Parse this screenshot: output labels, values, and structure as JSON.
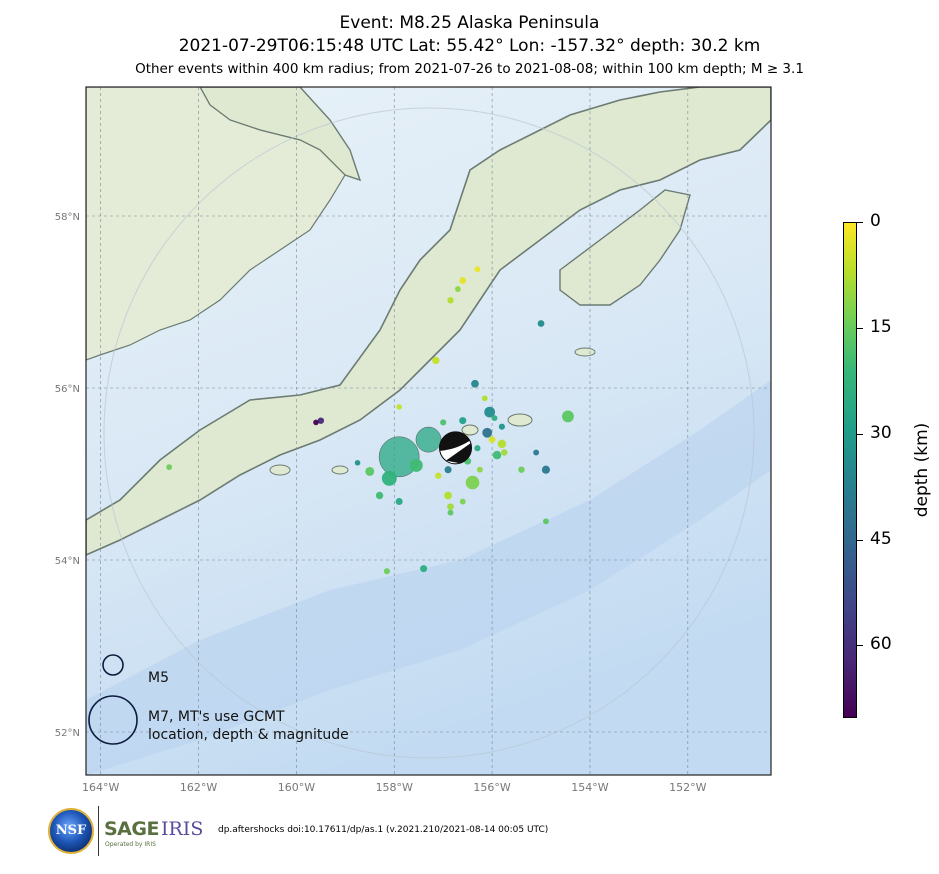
{
  "title": {
    "line1": "Event: M8.25 Alaska Peninsula",
    "line2": "2021-07-29T06:15:48 UTC Lat: 55.42° Lon: -157.32° depth: 30.2 km",
    "line3": "Other events within 400 km radius; from 2021-07-26 to 2021-08-08; within 100 km depth; M ≥ 3.1"
  },
  "map": {
    "lon_range": [
      -164.3,
      -150.3
    ],
    "lat_range": [
      51.5,
      59.5
    ],
    "lon_ticks": [
      "164°W",
      "162°W",
      "160°W",
      "158°W",
      "156°W",
      "154°W",
      "152°W"
    ],
    "lat_ticks": [
      "58°N",
      "56°N",
      "54°N",
      "52°N"
    ],
    "water_color": "#cfe3f5",
    "land_color": "#dde8cf",
    "coast_color": "#6b7b72"
  },
  "legend": {
    "small_label": "M5",
    "large_label_line1": "M7, MT's use GCMT",
    "large_label_line2": "location, depth & magnitude"
  },
  "colorbar": {
    "label": "depth (km)",
    "ticks": [
      "0",
      "15",
      "30",
      "45",
      "60"
    ],
    "range": [
      0,
      70
    ]
  },
  "footer": {
    "citation": "dp.aftershocks doi:10.17611/dp/as.1 (v.2021.210/2021-08-14 00:05 UTC)"
  },
  "logos": {
    "nsf": "NSF",
    "sage": "SAGE",
    "iris": "IRIS",
    "operated_by": "Operated by IRIS"
  },
  "chart_data": {
    "type": "scatter",
    "x_label": "longitude",
    "y_label": "latitude",
    "mainshock": {
      "lon": -157.32,
      "lat": 55.42,
      "depth": 30.2,
      "mag": 8.25
    },
    "events": [
      {
        "lon": -157.9,
        "lat": 55.2,
        "depth": 28,
        "mag": 7.3
      },
      {
        "lon": -157.3,
        "lat": 55.4,
        "depth": 28,
        "mag": 6.3
      },
      {
        "lon": -156.75,
        "lat": 55.3,
        "depth": 32,
        "mag": 5.0
      },
      {
        "lon": -158.1,
        "lat": 54.95,
        "depth": 25,
        "mag": 5.2
      },
      {
        "lon": -157.55,
        "lat": 55.1,
        "depth": 22,
        "mag": 4.9
      },
      {
        "lon": -156.4,
        "lat": 54.9,
        "depth": 14,
        "mag": 5.0
      },
      {
        "lon": -154.45,
        "lat": 55.67,
        "depth": 18,
        "mag": 4.7
      },
      {
        "lon": -156.05,
        "lat": 55.72,
        "depth": 36,
        "mag": 4.5
      },
      {
        "lon": -156.1,
        "lat": 55.48,
        "depth": 44,
        "mag": 4.3
      },
      {
        "lon": -155.8,
        "lat": 55.35,
        "depth": 8,
        "mag": 4.0
      },
      {
        "lon": -155.9,
        "lat": 55.22,
        "depth": 22,
        "mag": 4.0
      },
      {
        "lon": -154.9,
        "lat": 55.05,
        "depth": 42,
        "mag": 3.9
      },
      {
        "lon": -156.35,
        "lat": 56.05,
        "depth": 38,
        "mag": 3.8
      },
      {
        "lon": -155.0,
        "lat": 56.75,
        "depth": 36,
        "mag": 3.5
      },
      {
        "lon": -157.15,
        "lat": 56.32,
        "depth": 6,
        "mag": 3.7
      },
      {
        "lon": -156.85,
        "lat": 57.02,
        "depth": 8,
        "mag": 3.4
      },
      {
        "lon": -156.6,
        "lat": 57.25,
        "depth": 3,
        "mag": 3.5
      },
      {
        "lon": -156.3,
        "lat": 57.38,
        "depth": 2,
        "mag": 3.2
      },
      {
        "lon": -156.7,
        "lat": 57.15,
        "depth": 12,
        "mag": 3.2
      },
      {
        "lon": -158.5,
        "lat": 55.03,
        "depth": 18,
        "mag": 4.1
      },
      {
        "lon": -158.3,
        "lat": 54.75,
        "depth": 22,
        "mag": 3.7
      },
      {
        "lon": -157.9,
        "lat": 54.68,
        "depth": 28,
        "mag": 3.6
      },
      {
        "lon": -156.9,
        "lat": 54.75,
        "depth": 8,
        "mag": 3.8
      },
      {
        "lon": -156.85,
        "lat": 54.62,
        "depth": 10,
        "mag": 3.5
      },
      {
        "lon": -156.6,
        "lat": 54.68,
        "depth": 14,
        "mag": 3.2
      },
      {
        "lon": -156.85,
        "lat": 54.55,
        "depth": 18,
        "mag": 3.2
      },
      {
        "lon": -155.4,
        "lat": 55.05,
        "depth": 16,
        "mag": 3.4
      },
      {
        "lon": -155.1,
        "lat": 55.25,
        "depth": 42,
        "mag": 3.2
      },
      {
        "lon": -155.8,
        "lat": 55.55,
        "depth": 34,
        "mag": 3.3
      },
      {
        "lon": -156.15,
        "lat": 55.88,
        "depth": 8,
        "mag": 3.2
      },
      {
        "lon": -156.6,
        "lat": 55.62,
        "depth": 30,
        "mag": 3.6
      },
      {
        "lon": -156.65,
        "lat": 55.28,
        "depth": 16,
        "mag": 3.8
      },
      {
        "lon": -156.5,
        "lat": 55.15,
        "depth": 20,
        "mag": 3.6
      },
      {
        "lon": -156.55,
        "lat": 55.42,
        "depth": 4,
        "mag": 3.4
      },
      {
        "lon": -156.9,
        "lat": 55.05,
        "depth": 40,
        "mag": 3.6
      },
      {
        "lon": -157.1,
        "lat": 54.98,
        "depth": 6,
        "mag": 3.4
      },
      {
        "lon": -155.95,
        "lat": 55.65,
        "depth": 26,
        "mag": 3.2
      },
      {
        "lon": -156.0,
        "lat": 55.4,
        "depth": 4,
        "mag": 3.5
      },
      {
        "lon": -156.3,
        "lat": 55.3,
        "depth": 28,
        "mag": 3.3
      },
      {
        "lon": -157.9,
        "lat": 55.78,
        "depth": 6,
        "mag": 3.1
      },
      {
        "lon": -158.75,
        "lat": 55.13,
        "depth": 34,
        "mag": 3.1
      },
      {
        "lon": -159.5,
        "lat": 55.62,
        "depth": 62,
        "mag": 3.4
      },
      {
        "lon": -159.6,
        "lat": 55.6,
        "depth": 70,
        "mag": 3.1
      },
      {
        "lon": -162.6,
        "lat": 55.08,
        "depth": 16,
        "mag": 3.2
      },
      {
        "lon": -154.9,
        "lat": 54.45,
        "depth": 18,
        "mag": 3.2
      },
      {
        "lon": -158.15,
        "lat": 53.87,
        "depth": 16,
        "mag": 3.3
      },
      {
        "lon": -157.4,
        "lat": 53.9,
        "depth": 26,
        "mag": 3.6
      },
      {
        "lon": -156.25,
        "lat": 55.05,
        "depth": 12,
        "mag": 3.2
      },
      {
        "lon": -155.75,
        "lat": 55.25,
        "depth": 10,
        "mag": 3.4
      },
      {
        "lon": -157.0,
        "lat": 55.6,
        "depth": 20,
        "mag": 3.3
      }
    ]
  }
}
